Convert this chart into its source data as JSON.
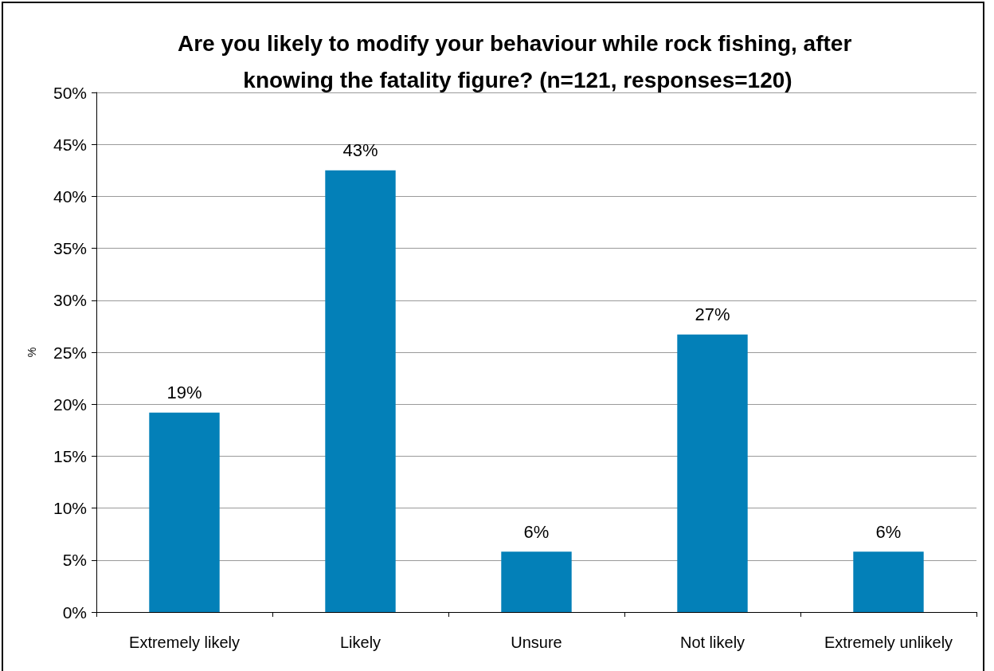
{
  "chart_data": {
    "type": "bar",
    "title": "Are you likely to modify your behaviour while rock fishing, after knowing the fatality figure? (n=121, responses=120)",
    "ylabel": "%",
    "categories": [
      "Extremely likely",
      "Likely",
      "Unsure",
      "Not likely",
      "Extremely unlikely"
    ],
    "values": [
      19.2,
      42.5,
      5.8,
      26.7,
      5.8
    ],
    "value_labels": [
      "19%",
      "43%",
      "6%",
      "27%",
      "6%"
    ],
    "color": "#0380b8",
    "ylim": [
      0,
      50
    ],
    "yticks": [
      {
        "value": 0,
        "label": "0%"
      },
      {
        "value": 5,
        "label": "5%"
      },
      {
        "value": 10,
        "label": "10%"
      },
      {
        "value": 15,
        "label": "15%"
      },
      {
        "value": 20,
        "label": "20%"
      },
      {
        "value": 25,
        "label": "25%"
      },
      {
        "value": 30,
        "label": "30%"
      },
      {
        "value": 35,
        "label": "35%"
      },
      {
        "value": 40,
        "label": "40%"
      },
      {
        "value": 45,
        "label": "45%"
      },
      {
        "value": 50,
        "label": "50%"
      }
    ],
    "grid": "y"
  }
}
